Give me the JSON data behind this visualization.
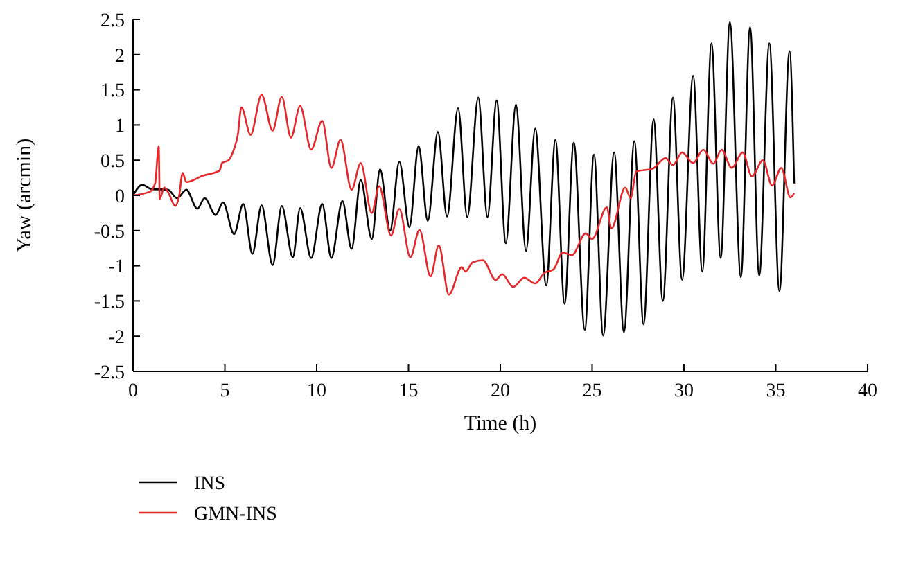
{
  "chart_data": {
    "type": "line",
    "xlabel": "Time (h)",
    "ylabel": "Yaw (arcmin)",
    "xlim": [
      0,
      40
    ],
    "xticks": [
      0,
      5,
      10,
      15,
      20,
      25,
      30,
      35,
      40
    ],
    "ylim": [
      -2.5,
      2.5
    ],
    "yticks": [
      -2.5,
      -2,
      -1.5,
      -1,
      -0.5,
      0,
      0.5,
      1,
      1.5,
      2,
      2.5
    ],
    "grid": false,
    "legend": "bottom left",
    "marker": "none",
    "line_style": "solid",
    "series": [
      {
        "name": "INS",
        "color": "#000000",
        "x": [
          0,
          0.5,
          1.0,
          1.9,
          2.4,
          2.9,
          3.5,
          3.9,
          4.5,
          4.9,
          5.5,
          6.0,
          6.5,
          7.0,
          7.6,
          8.1,
          8.7,
          9.1,
          9.7,
          10.3,
          10.8,
          11.4,
          11.9,
          12.4,
          13.0,
          13.45,
          14.0,
          14.5,
          15.05,
          15.55,
          16.05,
          16.6,
          17.1,
          17.7,
          18.2,
          18.8,
          19.3,
          19.8,
          20.3,
          20.85,
          21.4,
          21.9,
          22.5,
          23.0,
          23.5,
          24.0,
          24.6,
          25.1,
          25.6,
          26.2,
          26.73,
          27.3,
          27.8,
          28.35,
          28.85,
          29.4,
          29.9,
          30.5,
          31.0,
          31.5,
          32.0,
          32.5,
          33.1,
          33.6,
          34.1,
          34.65,
          35.2,
          35.75,
          36.0
        ],
        "values": [
          0,
          0.15,
          0.09,
          0.08,
          -0.04,
          0.08,
          -0.19,
          -0.04,
          -0.28,
          -0.1,
          -0.55,
          -0.12,
          -0.83,
          -0.14,
          -0.99,
          -0.15,
          -0.88,
          -0.18,
          -0.89,
          -0.12,
          -0.89,
          -0.08,
          -0.76,
          0.22,
          -0.62,
          0.37,
          -0.5,
          0.48,
          -0.45,
          0.7,
          -0.36,
          0.9,
          -0.3,
          1.24,
          -0.31,
          1.39,
          -0.31,
          1.35,
          -0.68,
          1.29,
          -0.79,
          0.95,
          -1.28,
          0.79,
          -1.54,
          0.75,
          -1.91,
          0.58,
          -1.99,
          0.61,
          -1.94,
          0.77,
          -1.83,
          1.08,
          -1.5,
          1.39,
          -1.2,
          1.7,
          -1.08,
          2.16,
          -0.89,
          2.46,
          -1.16,
          2.39,
          -1.14,
          2.16,
          -1.36,
          2.05,
          0.17
        ]
      },
      {
        "name": "GMN-INS",
        "color": "#e8262a",
        "x": [
          0,
          0.9,
          1.2,
          1.4,
          1.45,
          1.7,
          1.9,
          2.3,
          2.5,
          2.7,
          2.9,
          3.8,
          4.7,
          4.85,
          5.2,
          5.5,
          5.7,
          5.9,
          6.4,
          7.0,
          7.6,
          8.1,
          8.6,
          9.1,
          9.7,
          10.3,
          10.8,
          11.3,
          11.9,
          12.4,
          13.0,
          13.4,
          14.05,
          14.5,
          15.1,
          15.6,
          16.2,
          16.65,
          17.2,
          17.9,
          18.1,
          18.5,
          19.05,
          19.75,
          20.1,
          20.7,
          21.3,
          21.9,
          22.4,
          22.9,
          23.4,
          23.9,
          24.65,
          25.0,
          25.8,
          26.05,
          26.8,
          27.1,
          27.4,
          28.3,
          29.0,
          29.4,
          29.9,
          30.5,
          31.05,
          31.6,
          32.05,
          32.6,
          33.2,
          33.7,
          34.3,
          34.8,
          35.3,
          35.8,
          36.0
        ],
        "values": [
          0,
          0.05,
          0.17,
          0.7,
          -0.05,
          0.11,
          0.05,
          -0.15,
          -0.02,
          0.32,
          0.19,
          0.28,
          0.35,
          0.46,
          0.5,
          0.66,
          0.85,
          1.25,
          0.86,
          1.43,
          0.92,
          1.4,
          0.82,
          1.27,
          0.65,
          1.06,
          0.39,
          0.79,
          0.08,
          0.46,
          -0.25,
          0.13,
          -0.57,
          -0.19,
          -0.88,
          -0.49,
          -1.15,
          -0.71,
          -1.41,
          -1.02,
          -1.08,
          -0.95,
          -0.92,
          -1.2,
          -1.12,
          -1.3,
          -1.17,
          -1.25,
          -1.1,
          -1.05,
          -0.81,
          -0.85,
          -0.54,
          -0.62,
          -0.17,
          -0.47,
          0.11,
          -0.04,
          0.34,
          0.38,
          0.53,
          0.43,
          0.61,
          0.46,
          0.65,
          0.45,
          0.65,
          0.39,
          0.61,
          0.27,
          0.5,
          0.14,
          0.39,
          -0.03,
          0.03
        ]
      }
    ]
  }
}
